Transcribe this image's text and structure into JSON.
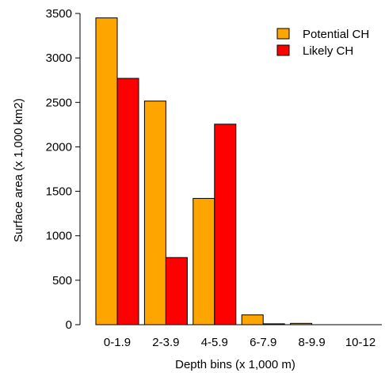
{
  "chart_data": {
    "type": "bar",
    "categories": [
      "0-1.9",
      "2-3.9",
      "4-5.9",
      "6-7.9",
      "8-9.9",
      "10-12"
    ],
    "series": [
      {
        "name": "Potential CH",
        "color": "#FFA500",
        "values": [
          3450,
          2515,
          1420,
          110,
          15,
          0
        ]
      },
      {
        "name": "Likely CH",
        "color": "#FF0000",
        "values": [
          2770,
          755,
          2255,
          10,
          0,
          0
        ]
      }
    ],
    "xlabel": "Depth bins (x 1,000 m)",
    "ylabel": "Surface area (x 1,000 km2)",
    "ylim": [
      0,
      3500
    ],
    "yticks": [
      0,
      500,
      1000,
      1500,
      2000,
      2500,
      3000,
      3500
    ],
    "grid": false,
    "legend_position": "top-right"
  }
}
